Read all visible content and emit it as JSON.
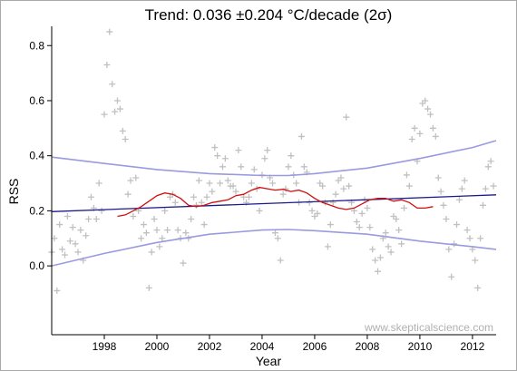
{
  "chart_data": {
    "type": "scatter",
    "title": "Trend: 0.036 ±0.204 °C/decade (2σ)",
    "xlabel": "Year",
    "ylabel": "RSS",
    "xlim": [
      1996,
      2012.9
    ],
    "ylim": [
      -0.25,
      0.87
    ],
    "x_ticks": [
      1998,
      2000,
      2002,
      2004,
      2006,
      2008,
      2010,
      2012
    ],
    "y_ticks": [
      0.0,
      0.2,
      0.4,
      0.6,
      0.8
    ],
    "x_tick_labels": [
      "1998",
      "2000",
      "2002",
      "2004",
      "2006",
      "2008",
      "2010",
      "2012"
    ],
    "y_tick_labels": [
      "0.0",
      "0.2",
      "0.4",
      "0.6",
      "0.8"
    ],
    "grid": false,
    "watermark": "www.skepticalscience.com",
    "colors": {
      "points": "#c0c0c0",
      "trend": "#1a1a8c",
      "confidence": "#9a9ae0",
      "moving_average": "#d01010"
    },
    "trend_line": {
      "x": [
        1996,
        2012.9
      ],
      "y": [
        0.197,
        0.258
      ]
    },
    "confidence_upper": {
      "x": [
        1996,
        1998,
        2000,
        2002,
        2004,
        2005,
        2006,
        2008,
        2010,
        2012,
        2012.9
      ],
      "y": [
        0.395,
        0.372,
        0.35,
        0.335,
        0.328,
        0.328,
        0.335,
        0.355,
        0.39,
        0.43,
        0.455
      ]
    },
    "confidence_lower": {
      "x": [
        1996,
        1998,
        2000,
        2002,
        2004,
        2005,
        2006,
        2008,
        2010,
        2012,
        2012.9
      ],
      "y": [
        0.0,
        0.045,
        0.085,
        0.115,
        0.13,
        0.132,
        0.128,
        0.115,
        0.09,
        0.07,
        0.06
      ]
    },
    "moving_average": {
      "x": [
        1998.5,
        1998.8,
        1999.1,
        1999.4,
        1999.7,
        2000.0,
        2000.3,
        2000.6,
        2000.9,
        2001.2,
        2001.5,
        2001.8,
        2002.1,
        2002.4,
        2002.7,
        2003.0,
        2003.3,
        2003.6,
        2003.9,
        2004.2,
        2004.5,
        2004.8,
        2005.1,
        2005.4,
        2005.7,
        2006.0,
        2006.3,
        2006.6,
        2006.9,
        2007.2,
        2007.5,
        2007.8,
        2008.1,
        2008.4,
        2008.7,
        2009.0,
        2009.3,
        2009.6,
        2009.9,
        2010.2,
        2010.5
      ],
      "y": [
        0.18,
        0.185,
        0.2,
        0.215,
        0.235,
        0.255,
        0.265,
        0.26,
        0.245,
        0.22,
        0.215,
        0.22,
        0.23,
        0.235,
        0.24,
        0.255,
        0.26,
        0.275,
        0.285,
        0.28,
        0.275,
        0.278,
        0.27,
        0.275,
        0.265,
        0.245,
        0.23,
        0.22,
        0.21,
        0.205,
        0.21,
        0.225,
        0.24,
        0.245,
        0.245,
        0.235,
        0.24,
        0.23,
        0.21,
        0.21,
        0.215
      ]
    },
    "points": {
      "x": [
        1996.0,
        1996.1,
        1996.2,
        1996.3,
        1996.4,
        1996.5,
        1996.6,
        1996.7,
        1996.8,
        1996.9,
        1997.0,
        1997.1,
        1997.2,
        1997.3,
        1997.4,
        1997.5,
        1997.6,
        1997.7,
        1997.8,
        1997.9,
        1998.0,
        1998.1,
        1998.2,
        1998.3,
        1998.4,
        1998.5,
        1998.6,
        1998.7,
        1998.8,
        1998.9,
        1999.0,
        1999.1,
        1999.2,
        1999.3,
        1999.4,
        1999.5,
        1999.6,
        1999.7,
        1999.8,
        1999.9,
        2000.0,
        2000.1,
        2000.2,
        2000.3,
        2000.4,
        2000.5,
        2000.6,
        2000.7,
        2000.8,
        2000.9,
        2001.0,
        2001.1,
        2001.2,
        2001.3,
        2001.4,
        2001.5,
        2001.6,
        2001.7,
        2001.8,
        2001.9,
        2002.0,
        2002.1,
        2002.2,
        2002.3,
        2002.4,
        2002.5,
        2002.6,
        2002.7,
        2002.8,
        2002.9,
        2003.0,
        2003.1,
        2003.2,
        2003.3,
        2003.4,
        2003.5,
        2003.6,
        2003.7,
        2003.8,
        2003.9,
        2004.0,
        2004.1,
        2004.2,
        2004.3,
        2004.4,
        2004.5,
        2004.6,
        2004.7,
        2004.8,
        2004.9,
        2005.0,
        2005.1,
        2005.2,
        2005.3,
        2005.4,
        2005.5,
        2005.6,
        2005.7,
        2005.8,
        2005.9,
        2006.0,
        2006.1,
        2006.2,
        2006.3,
        2006.4,
        2006.5,
        2006.6,
        2006.7,
        2006.8,
        2006.9,
        2007.0,
        2007.1,
        2007.2,
        2007.3,
        2007.4,
        2007.5,
        2007.6,
        2007.7,
        2007.8,
        2007.9,
        2008.0,
        2008.1,
        2008.2,
        2008.3,
        2008.4,
        2008.5,
        2008.6,
        2008.7,
        2008.8,
        2008.9,
        2009.0,
        2009.1,
        2009.2,
        2009.3,
        2009.4,
        2009.5,
        2009.6,
        2009.7,
        2009.8,
        2009.9,
        2010.0,
        2010.1,
        2010.2,
        2010.3,
        2010.4,
        2010.5,
        2010.6,
        2010.7,
        2010.8,
        2010.9,
        2011.0,
        2011.1,
        2011.2,
        2011.3,
        2011.4,
        2011.5,
        2011.6,
        2011.7,
        2011.8,
        2011.9,
        2012.0,
        2012.1,
        2012.2,
        2012.3,
        2012.4,
        2012.5,
        2012.6,
        2012.7,
        2012.8
      ],
      "y": [
        0.05,
        0.1,
        -0.09,
        0.15,
        0.06,
        0.04,
        0.18,
        0.09,
        0.14,
        0.08,
        0.05,
        0.13,
        0.02,
        0.11,
        0.17,
        0.25,
        0.21,
        0.17,
        0.3,
        0.2,
        0.55,
        0.73,
        0.85,
        0.66,
        0.56,
        0.6,
        0.57,
        0.49,
        0.46,
        0.26,
        0.31,
        0.18,
        0.32,
        0.2,
        0.1,
        0.15,
        0.12,
        -0.08,
        0.05,
        0.17,
        0.13,
        0.07,
        0.1,
        0.2,
        0.13,
        0.25,
        0.26,
        0.23,
        0.13,
        0.1,
        0.01,
        0.12,
        0.1,
        0.17,
        0.25,
        0.22,
        0.31,
        0.23,
        0.15,
        0.25,
        0.3,
        0.27,
        0.43,
        0.4,
        0.3,
        0.36,
        0.39,
        0.31,
        0.29,
        0.29,
        0.27,
        0.42,
        0.36,
        0.25,
        0.23,
        0.25,
        0.3,
        0.35,
        0.28,
        0.2,
        0.33,
        0.39,
        0.42,
        0.32,
        0.3,
        0.12,
        0.1,
        0.02,
        0.26,
        0.28,
        0.36,
        0.4,
        0.33,
        0.3,
        0.23,
        0.47,
        0.36,
        0.34,
        0.23,
        0.2,
        0.18,
        0.19,
        0.3,
        0.29,
        0.23,
        0.07,
        0.15,
        0.23,
        0.26,
        0.31,
        0.32,
        0.28,
        0.54,
        0.29,
        0.23,
        0.2,
        0.16,
        0.14,
        0.19,
        0.24,
        0.21,
        0.14,
        0.06,
        0.02,
        -0.02,
        0.03,
        0.1,
        0.12,
        0.07,
        0.05,
        0.18,
        0.17,
        0.13,
        0.08,
        0.21,
        0.33,
        0.29,
        0.46,
        0.5,
        0.38,
        0.48,
        0.59,
        0.6,
        0.57,
        0.55,
        0.5,
        0.47,
        0.32,
        0.27,
        0.22,
        0.17,
        0.06,
        -0.04,
        0.08,
        0.15,
        0.24,
        0.28,
        0.31,
        0.13,
        0.1,
        0.06,
        0.02,
        -0.08,
        0.1,
        0.22,
        0.28,
        0.36,
        0.38,
        0.29
      ]
    }
  }
}
